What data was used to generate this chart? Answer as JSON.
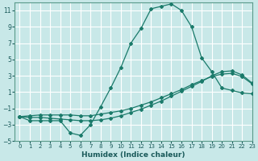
{
  "xlabel": "Humidex (Indice chaleur)",
  "ylabel": "",
  "background_color": "#c8e8e8",
  "grid_color": "#ffffff",
  "line_color": "#1a7a6a",
  "xlim": [
    -0.5,
    23
  ],
  "ylim": [
    -5,
    12
  ],
  "xticks": [
    0,
    1,
    2,
    3,
    4,
    5,
    6,
    7,
    8,
    9,
    10,
    11,
    12,
    13,
    14,
    15,
    16,
    17,
    18,
    19,
    20,
    21,
    22,
    23
  ],
  "yticks": [
    -5,
    -3,
    -1,
    1,
    3,
    5,
    7,
    9,
    11
  ],
  "series": [
    {
      "x": [
        0,
        1,
        2,
        3,
        4,
        5,
        6,
        7,
        8,
        9,
        10,
        11,
        12,
        13,
        14,
        15,
        16,
        17,
        18,
        19,
        20,
        21,
        22,
        23
      ],
      "y": [
        -2,
        -2.5,
        -2.5,
        -2.5,
        -2.5,
        -4,
        -4.3,
        -3,
        -0.8,
        1.5,
        4,
        7,
        8.8,
        11.2,
        11.5,
        11.8,
        11,
        9,
        5.2,
        3.5,
        1.5,
        1.2,
        0.9,
        0.8
      ]
    },
    {
      "x": [
        0,
        1,
        2,
        3,
        4,
        5,
        6,
        7,
        8,
        9,
        10,
        11,
        12,
        13,
        14,
        15,
        16,
        17,
        18,
        19,
        20,
        21,
        22,
        23
      ],
      "y": [
        -2,
        -2.1,
        -2.1,
        -2.2,
        -2.3,
        -2.4,
        -2.5,
        -2.5,
        -2.4,
        -2.2,
        -1.9,
        -1.5,
        -1.1,
        -0.6,
        -0.1,
        0.5,
        1.1,
        1.7,
        2.3,
        3.0,
        3.5,
        3.6,
        3.1,
        2.1
      ]
    },
    {
      "x": [
        0,
        1,
        2,
        3,
        4,
        5,
        6,
        7,
        8,
        9,
        10,
        11,
        12,
        13,
        14,
        15,
        16,
        17,
        18,
        19,
        20,
        21,
        22,
        23
      ],
      "y": [
        -2,
        -1.9,
        -1.8,
        -1.8,
        -1.8,
        -1.8,
        -1.9,
        -1.9,
        -1.7,
        -1.5,
        -1.3,
        -1.0,
        -0.6,
        -0.2,
        0.3,
        0.8,
        1.3,
        1.9,
        2.4,
        2.9,
        3.2,
        3.3,
        2.9,
        2.0
      ]
    }
  ]
}
